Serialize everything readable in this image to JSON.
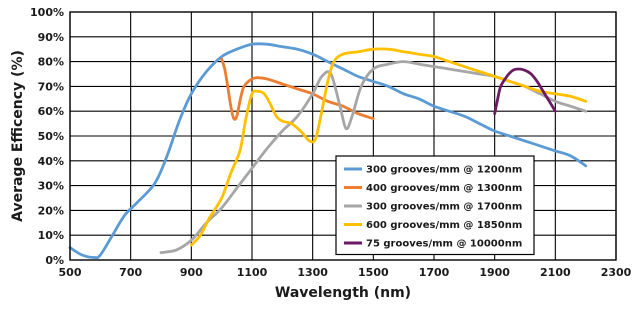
{
  "chart_data": {
    "type": "line",
    "title": "",
    "xlabel": "Wavelength (nm)",
    "ylabel": "Average Efficency (%)",
    "xlim": [
      500,
      2300
    ],
    "ylim": [
      0,
      100
    ],
    "x_ticks": [
      500,
      700,
      900,
      1100,
      1300,
      1500,
      1700,
      1900,
      2100,
      2300
    ],
    "x_tick_labels": [
      "500",
      "700",
      "900",
      "1100",
      "1300",
      "1500",
      "1700",
      "1900",
      "2100",
      "2300"
    ],
    "y_ticks": [
      0,
      10,
      20,
      30,
      40,
      50,
      60,
      70,
      80,
      90,
      100
    ],
    "y_tick_labels": [
      "0%",
      "10%",
      "20%",
      "30%",
      "40%",
      "50%",
      "60%",
      "70%",
      "80%",
      "90%",
      "100%"
    ],
    "grid": true,
    "legend_position": "bottom-right",
    "series": [
      {
        "name": "300 grooves/mm @ 1200nm",
        "color": "#5b9bd5",
        "x": [
          500,
          540,
          580,
          600,
          640,
          680,
          720,
          780,
          820,
          860,
          900,
          950,
          1000,
          1050,
          1100,
          1150,
          1200,
          1250,
          1300,
          1350,
          1400,
          1450,
          1500,
          1550,
          1600,
          1650,
          1700,
          1750,
          1800,
          1850,
          1900,
          1950,
          2000,
          2050,
          2100,
          2150,
          2200
        ],
        "y": [
          5,
          2,
          1,
          2,
          10,
          18,
          23,
          31,
          42,
          56,
          67,
          76,
          82,
          85,
          87,
          87,
          86,
          85,
          83,
          80,
          77,
          74,
          72,
          70,
          67,
          65,
          62,
          60,
          58,
          55,
          52,
          50,
          48,
          46,
          44,
          42,
          38
        ]
      },
      {
        "name": "400 grooves/mm @ 1300nm",
        "color": "#ed7d31",
        "x": [
          1000,
          1010,
          1020,
          1030,
          1040,
          1050,
          1060,
          1070,
          1080,
          1100,
          1120,
          1150,
          1200,
          1250,
          1300,
          1350,
          1400,
          1450,
          1500
        ],
        "y": [
          81,
          77,
          70,
          62,
          57,
          58,
          64,
          69,
          71,
          73,
          73.5,
          73,
          71,
          69,
          67,
          64,
          62,
          59,
          57
        ]
      },
      {
        "name": "300 grooves/mm @ 1700nm",
        "color": "#a6a6a6",
        "x": [
          800,
          850,
          900,
          950,
          1000,
          1050,
          1100,
          1150,
          1200,
          1250,
          1300,
          1330,
          1360,
          1390,
          1410,
          1430,
          1460,
          1500,
          1550,
          1600,
          1650,
          1700,
          1750,
          1800,
          1850,
          1900,
          1950,
          2000,
          2050,
          2100,
          2150,
          2200
        ],
        "y": [
          3,
          4,
          8,
          15,
          21,
          29,
          37,
          45,
          52,
          58,
          67,
          74,
          75,
          62,
          53,
          58,
          70,
          77,
          79,
          80,
          79,
          78,
          77,
          76,
          75,
          74,
          72,
          70,
          67,
          64,
          62,
          60
        ]
      },
      {
        "name": "600 grooves/mm @ 1850nm",
        "color": "#ffc000",
        "x": [
          900,
          930,
          960,
          1000,
          1030,
          1060,
          1080,
          1100,
          1120,
          1140,
          1160,
          1180,
          1200,
          1230,
          1260,
          1290,
          1310,
          1330,
          1350,
          1370,
          1400,
          1450,
          1500,
          1550,
          1600,
          1650,
          1700,
          1750,
          1800,
          1850,
          1900,
          1950,
          2000,
          2050,
          2100,
          2150,
          2200
        ],
        "y": [
          6,
          10,
          17,
          25,
          35,
          44,
          57,
          67,
          68,
          67,
          63,
          58,
          56,
          55,
          52,
          48,
          49,
          60,
          72,
          80,
          83,
          84,
          85,
          85,
          84,
          83,
          82,
          80,
          78,
          76,
          74,
          72,
          70,
          68,
          67,
          66,
          64
        ]
      },
      {
        "name": "75 grooves/mm @ 10000nm",
        "color": "#6b1a63",
        "x": [
          1900,
          1910,
          1920,
          1940,
          1960,
          1980,
          2000,
          2020,
          2040,
          2060,
          2080,
          2100
        ],
        "y": [
          59,
          65,
          70,
          74,
          76.5,
          77,
          76.5,
          75,
          72,
          68,
          64,
          60
        ]
      }
    ]
  }
}
